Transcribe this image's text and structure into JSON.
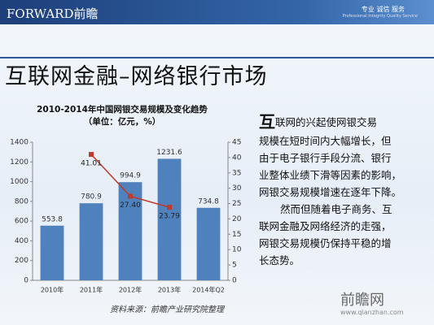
{
  "header": {
    "brand": "FORWARD前瞻",
    "tagline": "专业 诚信 服务",
    "tagline_en": "Professional Integrity Quality Service"
  },
  "title": "互联网金融–网络银行市场",
  "chart_data": {
    "type": "bar",
    "title": "2010-2014年中国网银交易规模及变化趋势",
    "subtitle": "（单位：亿元，%）",
    "categories": [
      "2010年",
      "2011年",
      "2012年",
      "2013年",
      "2014年Q2"
    ],
    "series": [
      {
        "color": "#4f81bd",
        "values": [
          553.8,
          780.9,
          994.9,
          1231.6,
          734.8
        ]
      },
      {
        "type": "line",
        "axis": "y2",
        "color": "#c0392b",
        "values": [
          null,
          41.01,
          27.4,
          23.79,
          null
        ],
        "value_labels": [
          null,
          "41.01",
          "27.40",
          "23.79",
          null
        ]
      }
    ],
    "ylim": [
      0,
      1400
    ],
    "yticks": [
      0,
      200,
      400,
      600,
      800,
      1000,
      1200,
      1400
    ],
    "y2lim": [
      0,
      45
    ],
    "y2ticks": [
      0,
      5,
      10,
      15,
      20,
      25,
      30,
      35,
      40,
      45
    ]
  },
  "body": {
    "dropcap": "互",
    "paragraph1": [
      "联网的兴起使网银交易",
      "规模在短时间内大幅增长，但",
      "由于电子银行手段分流、银行",
      "业整体业绩下滑等因素的影响，",
      "网银交易规模增速在逐年下降。"
    ],
    "paragraph2": [
      "然而但随着电子商务、互",
      "联网金融及网络经济的走强，",
      "网银交易规模仍保持平稳的增",
      "长态势。"
    ]
  },
  "source": "资料来源：前瞻产业研究院整理",
  "watermark": {
    "name": "前瞻网",
    "url": "www.qianzhan.com"
  }
}
